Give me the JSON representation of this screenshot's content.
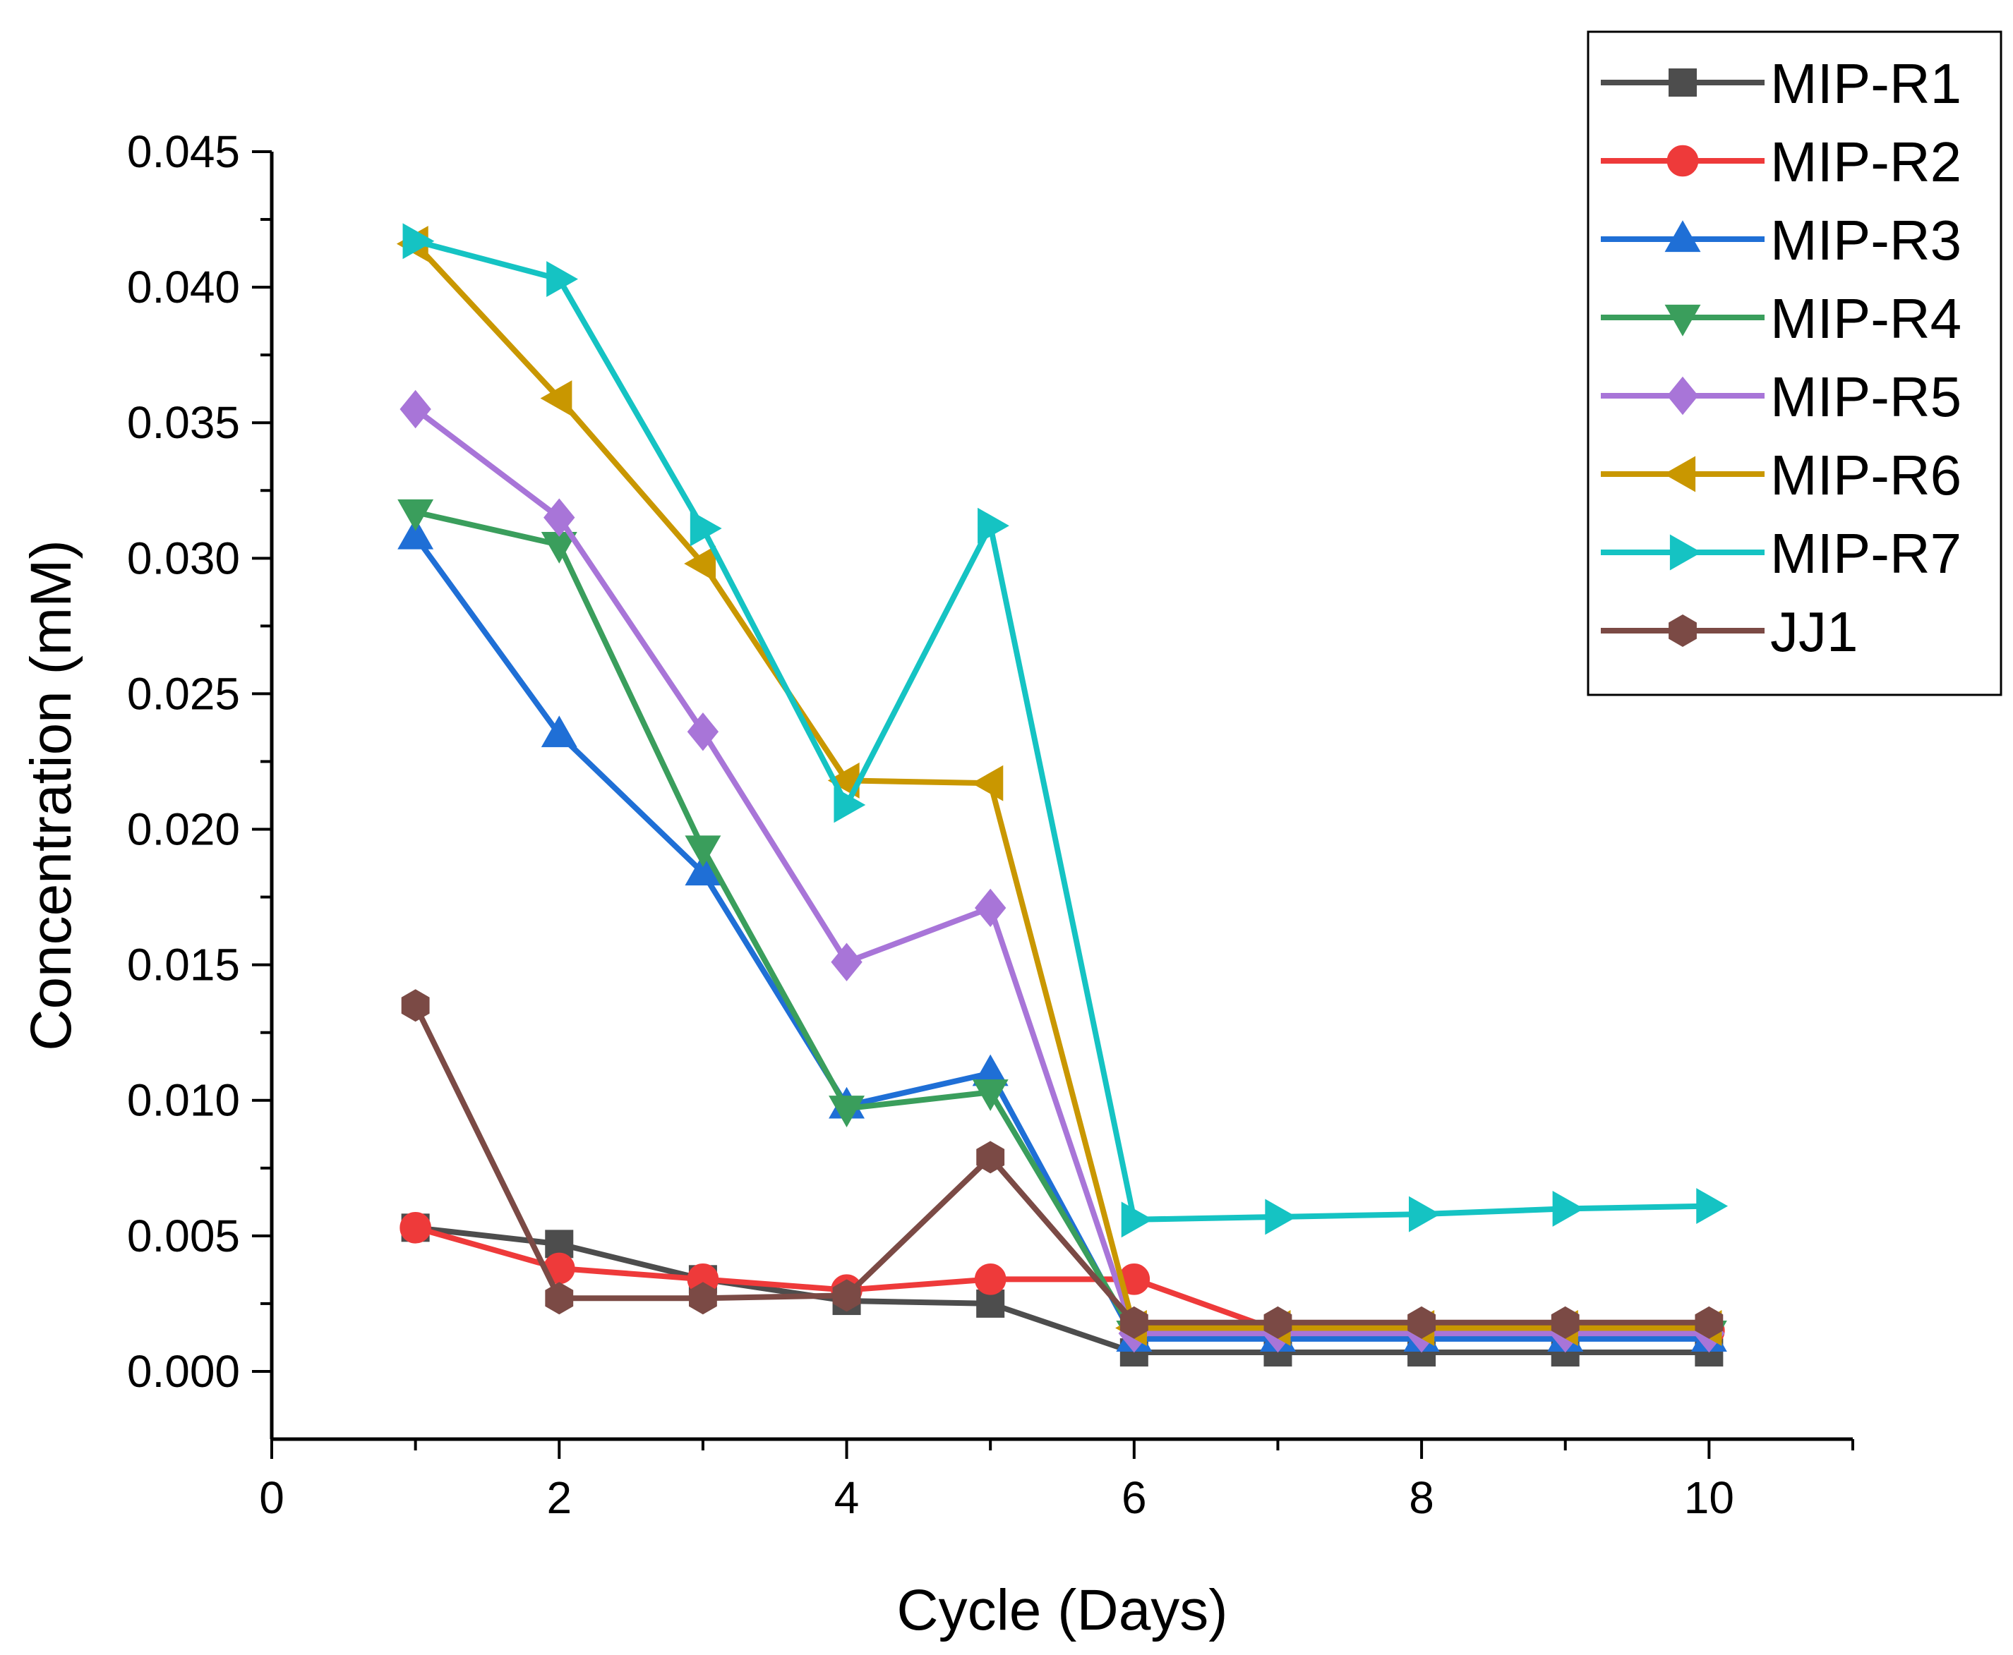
{
  "chart_data": {
    "type": "line",
    "title": "",
    "xlabel": "Cycle (Days)",
    "ylabel": "Concentration (mM)",
    "xlim": [
      0,
      11
    ],
    "ylim": [
      -0.0025,
      0.045
    ],
    "xticks": [
      0,
      2,
      4,
      6,
      8,
      10
    ],
    "xtick_labels": [
      "0",
      "2",
      "4",
      "6",
      "8",
      "10"
    ],
    "yticks": [
      0.0,
      0.005,
      0.01,
      0.015,
      0.02,
      0.025,
      0.03,
      0.035,
      0.04,
      0.045
    ],
    "ytick_labels": [
      "0.000",
      "0.005",
      "0.010",
      "0.015",
      "0.020",
      "0.025",
      "0.030",
      "0.035",
      "0.040",
      "0.045"
    ],
    "grid": false,
    "legend_position": "top-right",
    "x": [
      1,
      2,
      3,
      4,
      5,
      6,
      7,
      8,
      9,
      10
    ],
    "series": [
      {
        "name": "MIP-R1",
        "color": "#4d4d4d",
        "marker": "square",
        "values": [
          0.0053,
          0.0047,
          0.0034,
          0.0026,
          0.0025,
          0.0007,
          0.0007,
          0.0007,
          0.0007,
          0.0007
        ]
      },
      {
        "name": "MIP-R2",
        "color": "#ee3a3a",
        "marker": "circle",
        "values": [
          0.0053,
          0.0038,
          0.0034,
          0.003,
          0.0034,
          0.0034,
          0.0015,
          0.0015,
          0.0015,
          0.0015
        ]
      },
      {
        "name": "MIP-R3",
        "color": "#1f6fd6",
        "marker": "triangle-up",
        "values": [
          0.0308,
          0.0235,
          0.0184,
          0.0098,
          0.011,
          0.0012,
          0.0012,
          0.0012,
          0.0012,
          0.0012
        ]
      },
      {
        "name": "MIP-R4",
        "color": "#3a9e5c",
        "marker": "triangle-down",
        "values": [
          0.0317,
          0.0305,
          0.0193,
          0.0097,
          0.0103,
          0.0014,
          0.0014,
          0.0014,
          0.0014,
          0.0014
        ]
      },
      {
        "name": "MIP-R5",
        "color": "#a875d8",
        "marker": "diamond",
        "values": [
          0.0355,
          0.0315,
          0.0236,
          0.0151,
          0.0171,
          0.0014,
          0.0014,
          0.0014,
          0.0014,
          0.0014
        ]
      },
      {
        "name": "MIP-R6",
        "color": "#c99700",
        "marker": "triangle-left",
        "values": [
          0.0416,
          0.0359,
          0.0298,
          0.0218,
          0.0217,
          0.0016,
          0.0016,
          0.0016,
          0.0016,
          0.0016
        ]
      },
      {
        "name": "MIP-R7",
        "color": "#15c3c3",
        "marker": "triangle-right",
        "values": [
          0.0417,
          0.0403,
          0.0311,
          0.0209,
          0.0312,
          0.0056,
          0.0057,
          0.0058,
          0.006,
          0.0061
        ]
      },
      {
        "name": "JJ1",
        "color": "#7b4a45",
        "marker": "hexagon",
        "values": [
          0.0135,
          0.0027,
          0.0027,
          0.0028,
          0.0079,
          0.0018,
          0.0018,
          0.0018,
          0.0018,
          0.0018
        ]
      }
    ]
  }
}
